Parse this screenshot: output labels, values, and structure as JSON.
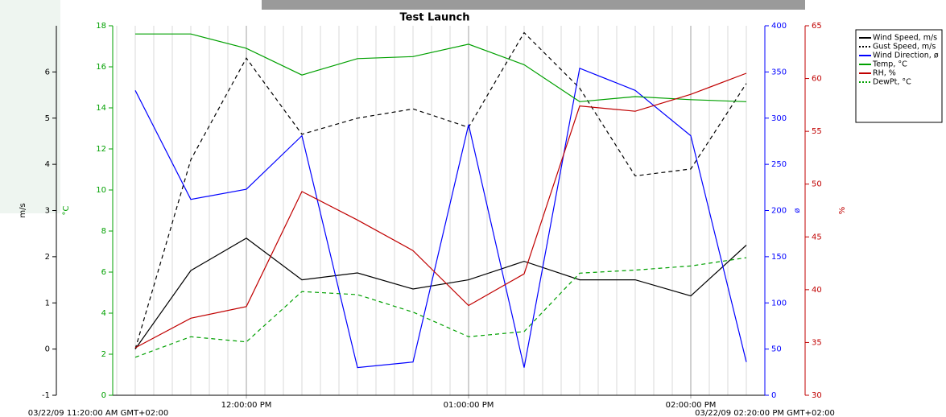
{
  "chart_data": {
    "type": "line",
    "title": "Test Launch",
    "x": [
      "2009-03-22T11:30",
      "2009-03-22T11:45",
      "2009-03-22T12:00",
      "2009-03-22T12:15",
      "2009-03-22T12:30",
      "2009-03-22T12:45",
      "2009-03-22T13:00",
      "2009-03-22T13:15",
      "2009-03-22T13:30",
      "2009-03-22T13:45",
      "2009-03-22T14:00",
      "2009-03-22T14:15"
    ],
    "xlim": [
      {
        "value": "2009-03-22T11:20",
        "label": "03/22/09 11:20:00 AM GMT+02:00"
      },
      {
        "value": "2009-03-22T14:20",
        "label": "03/22/09 02:20:00 PM GMT+02:00"
      }
    ],
    "xticks": [
      {
        "value": "2009-03-22T12:00",
        "label": "12:00:00 PM"
      },
      {
        "value": "2009-03-22T13:00",
        "label": "01:00:00 PM"
      },
      {
        "value": "2009-03-22T14:00",
        "label": "02:00:00 PM"
      }
    ],
    "minor_grid_minutes": 5,
    "ylabel": "m/s",
    "ylim": [
      -1,
      7
    ],
    "yticks": [
      -1,
      0,
      1,
      2,
      3,
      4,
      5,
      6
    ],
    "ycolor": "#000000",
    "y2label": "°C",
    "y2lim": [
      0,
      18
    ],
    "y2ticks": [
      0,
      2,
      4,
      6,
      8,
      10,
      12,
      14,
      16,
      18
    ],
    "y2color": "#00a000",
    "y3label": "ø",
    "y3lim": [
      0,
      400
    ],
    "y3ticks": [
      0,
      50,
      100,
      150,
      200,
      250,
      300,
      350,
      400
    ],
    "y3color": "#0000ff",
    "y4label": "%",
    "y4lim": [
      30,
      65
    ],
    "y4ticks": [
      30,
      35,
      40,
      45,
      50,
      55,
      60,
      65
    ],
    "y4color": "#c00000",
    "series": [
      {
        "name": "Wind Speed, m/s",
        "color": "#000000",
        "dashed": false,
        "axis": "y",
        "values": [
          0.0,
          1.7,
          2.4,
          1.5,
          1.65,
          1.3,
          1.5,
          1.9,
          1.5,
          1.5,
          1.15,
          2.25
        ]
      },
      {
        "name": "Gust Speed, m/s",
        "color": "#000000",
        "dashed": true,
        "axis": "y",
        "values": [
          0.0,
          4.1,
          6.3,
          4.65,
          5.0,
          5.2,
          4.8,
          6.85,
          5.65,
          3.75,
          3.9,
          5.75
        ]
      },
      {
        "name": "Wind Direction, ø",
        "color": "#0000ff",
        "dashed": false,
        "axis": "y3",
        "values": [
          330,
          212,
          223,
          281,
          30,
          36,
          293,
          30,
          354,
          330,
          281,
          36
        ]
      },
      {
        "name": "Temp, °C",
        "color": "#00a000",
        "dashed": false,
        "axis": "y2",
        "values": [
          17.6,
          17.6,
          16.9,
          15.6,
          16.4,
          16.5,
          17.1,
          16.1,
          14.3,
          14.55,
          14.4,
          14.3
        ]
      },
      {
        "name": "RH, %",
        "color": "#c00000",
        "dashed": false,
        "axis": "y4",
        "values": [
          34.5,
          37.3,
          38.4,
          49.3,
          46.6,
          43.7,
          38.5,
          41.5,
          57.4,
          56.9,
          58.5,
          60.5
        ]
      },
      {
        "name": "DewPt, °C",
        "color": "#00a000",
        "dashed": true,
        "axis": "y2",
        "values": [
          1.85,
          2.85,
          2.6,
          5.05,
          4.9,
          4.05,
          2.85,
          3.1,
          5.95,
          6.1,
          6.3,
          6.7
        ]
      }
    ]
  }
}
